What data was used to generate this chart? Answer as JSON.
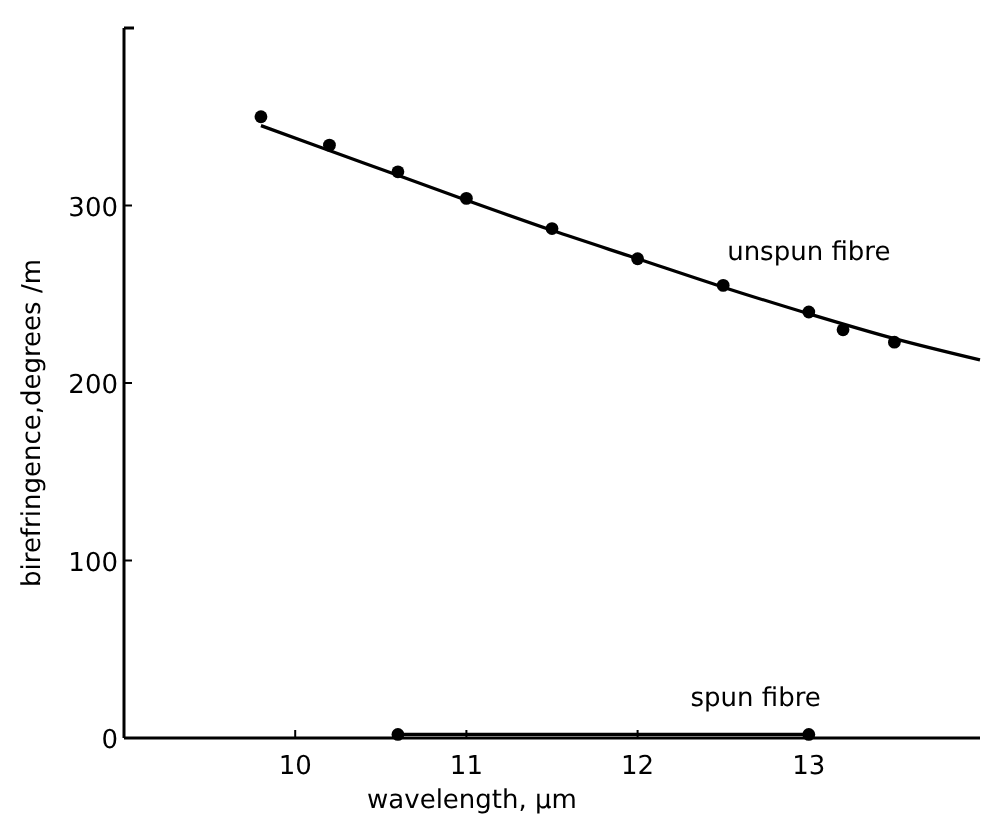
{
  "chart_data": {
    "type": "scatter",
    "xlabel": "wavelength, μm",
    "ylabel": "birefringence,degrees /m",
    "xlim": [
      9,
      14
    ],
    "xticks": [
      10,
      11,
      12,
      13
    ],
    "ylim": [
      0,
      400
    ],
    "yticks": [
      0,
      100,
      200,
      300
    ],
    "grid": false,
    "series": [
      {
        "name": "unspun fibre",
        "color": "#000000",
        "marker": "circle",
        "x": [
          9.8,
          10.2,
          10.6,
          11.0,
          11.5,
          12.0,
          12.5,
          13.0,
          13.2,
          13.5
        ],
        "values": [
          350,
          334,
          319,
          304,
          287,
          270,
          255,
          240,
          230,
          223
        ]
      },
      {
        "color": "#000000",
        "type": "line",
        "marker": "none",
        "x": [
          9.8,
          10.4,
          11.0,
          11.5,
          12.0,
          12.5,
          13.0,
          13.5,
          14.0
        ],
        "values": [
          345,
          324,
          303,
          286,
          270,
          254,
          239,
          225,
          213
        ]
      },
      {
        "name": "spun fibre",
        "color": "#000000",
        "type": "line",
        "marker": "circle",
        "x": [
          10.6,
          13.0
        ],
        "values": [
          2,
          2
        ]
      }
    ]
  }
}
